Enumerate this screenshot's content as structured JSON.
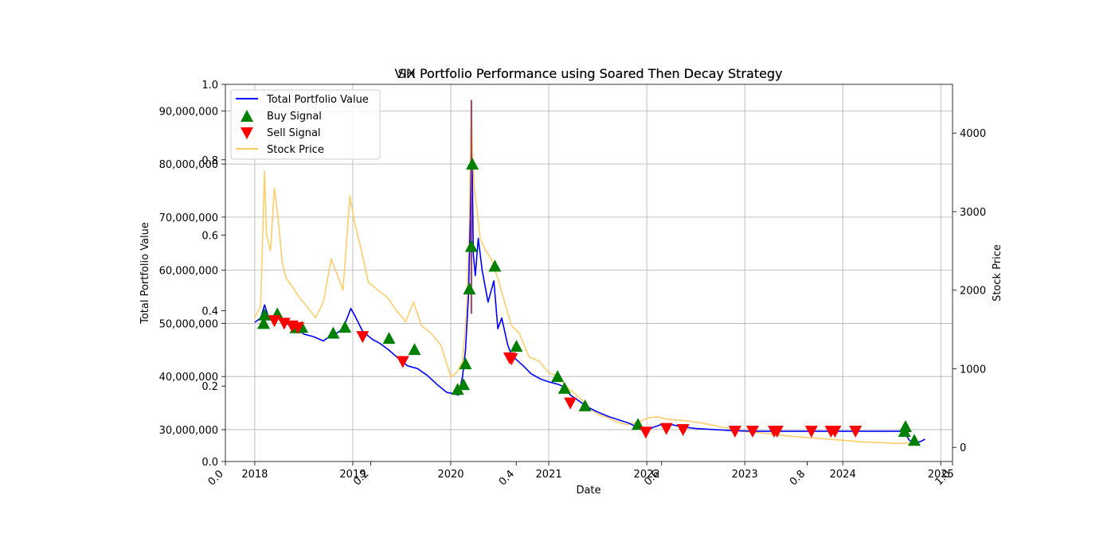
{
  "chart_data": {
    "type": "line",
    "title": "VIX Portfolio Performance using Soared Then Decay Strategy",
    "title_overlay": "SH Portfolio Performance using Soared Then Decay Strategy",
    "xlabel": "Date",
    "ylabel_left": "Total Portfolio Value",
    "ylabel_right": "Stock Price",
    "grid": true,
    "legend_position": "top-left",
    "x_range": [
      2017.7,
      2025.12
    ],
    "x_ticks": [
      "2018",
      "2019",
      "2020",
      "2021",
      "2022",
      "2023",
      "2024",
      "2025"
    ],
    "y_left_range": [
      24000000,
      95000000
    ],
    "y_left_ticks": [
      "30,000,000",
      "40,000,000",
      "50,000,000",
      "60,000,000",
      "70,000,000",
      "80,000,000",
      "90,000,000"
    ],
    "y_right_range": [
      -180,
      4620
    ],
    "y_right_ticks": [
      "0",
      "1000",
      "2000",
      "3000",
      "4000"
    ],
    "overlay_axis_ticks": [
      "0.0",
      "0.2",
      "0.4",
      "0.6",
      "0.8",
      "1.0"
    ],
    "legend": [
      "Total Portfolio Value",
      "Buy Signal",
      "Sell Signal",
      "Stock Price"
    ],
    "colors": {
      "portfolio": "#0000ff",
      "buy": "#008000",
      "sell": "#ff0000",
      "stock": "#ffc85a",
      "spike": "#993f6a"
    },
    "series": [
      {
        "name": "Total Portfolio Value",
        "axis": "left",
        "x": [
          2018.0,
          2018.06,
          2018.1,
          2018.14,
          2018.2,
          2018.26,
          2018.3,
          2018.36,
          2018.42,
          2018.5,
          2018.6,
          2018.7,
          2018.76,
          2018.84,
          2018.9,
          2018.98,
          2019.02,
          2019.1,
          2019.2,
          2019.28,
          2019.36,
          2019.46,
          2019.56,
          2019.66,
          2019.76,
          2019.86,
          2019.96,
          2020.02,
          2020.08,
          2020.12,
          2020.15,
          2020.18,
          2020.2,
          2020.21,
          2020.22,
          2020.23,
          2020.25,
          2020.28,
          2020.32,
          2020.38,
          2020.44,
          2020.48,
          2020.52,
          2020.58,
          2020.62,
          2020.68,
          2020.74,
          2020.82,
          2020.92,
          2021.0,
          2021.1,
          2021.16,
          2021.22,
          2021.3,
          2021.4,
          2021.5,
          2021.62,
          2021.72,
          2021.82,
          2021.9,
          2021.98,
          2022.06,
          2022.14,
          2022.24,
          2022.34,
          2022.5,
          2022.7,
          2022.9,
          2023.1,
          2023.3,
          2023.5,
          2023.7,
          2023.9,
          2024.1,
          2024.3,
          2024.5,
          2024.62,
          2024.68,
          2024.72,
          2024.76,
          2024.8,
          2024.84
        ],
        "values": [
          50200000,
          51000000,
          53500000,
          51200000,
          50100000,
          51500000,
          50200000,
          49600000,
          49300000,
          48000000,
          47500000,
          46700000,
          47500000,
          48200000,
          49000000,
          52800000,
          51500000,
          48500000,
          47000000,
          46200000,
          45100000,
          43500000,
          42000000,
          41500000,
          40200000,
          38500000,
          37000000,
          36800000,
          36500000,
          40000000,
          45000000,
          55000000,
          70000000,
          82000000,
          78000000,
          63000000,
          59000000,
          66000000,
          60000000,
          54000000,
          58000000,
          49000000,
          51000000,
          46000000,
          44000000,
          43000000,
          42000000,
          40500000,
          39500000,
          39000000,
          38500000,
          38000000,
          36500000,
          35500000,
          34200000,
          33300000,
          32400000,
          31800000,
          31200000,
          30500000,
          29600000,
          30400000,
          30900000,
          31000000,
          30600000,
          30200000,
          30000000,
          29800000,
          29700000,
          29700000,
          29700000,
          29700000,
          29700000,
          29700000,
          29700000,
          29700000,
          29700000,
          28000000,
          27500000,
          27600000,
          27800000,
          28200000
        ]
      },
      {
        "name": "Stock Price",
        "axis": "right",
        "x": [
          2018.0,
          2018.06,
          2018.1,
          2018.12,
          2018.16,
          2018.2,
          2018.24,
          2018.28,
          2018.32,
          2018.38,
          2018.46,
          2018.54,
          2018.62,
          2018.7,
          2018.78,
          2018.84,
          2018.9,
          2018.97,
          2019.02,
          2019.08,
          2019.16,
          2019.26,
          2019.36,
          2019.44,
          2019.54,
          2019.62,
          2019.7,
          2019.8,
          2019.9,
          2020.0,
          2020.06,
          2020.12,
          2020.16,
          2020.19,
          2020.21,
          2020.22,
          2020.24,
          2020.27,
          2020.3,
          2020.36,
          2020.42,
          2020.48,
          2020.56,
          2020.62,
          2020.7,
          2020.8,
          2020.9,
          2021.0,
          2021.1,
          2021.2,
          2021.3,
          2021.4,
          2021.5,
          2021.6,
          2021.7,
          2021.8,
          2021.9,
          2022.0,
          2022.1,
          2022.2,
          2022.3,
          2022.45,
          2022.6,
          2022.8,
          2023.0,
          2023.2,
          2023.4,
          2023.6,
          2023.8,
          2024.0,
          2024.2,
          2024.4,
          2024.6,
          2024.7,
          2024.78,
          2024.84
        ],
        "values": [
          1650,
          1800,
          3520,
          2700,
          2500,
          3300,
          2900,
          2350,
          2150,
          2050,
          1900,
          1780,
          1650,
          1850,
          2400,
          2200,
          2000,
          3200,
          2850,
          2550,
          2100,
          2000,
          1900,
          1750,
          1600,
          1850,
          1550,
          1450,
          1300,
          900,
          950,
          1100,
          1700,
          2800,
          4420,
          3800,
          3300,
          3000,
          2650,
          2500,
          2380,
          2150,
          1800,
          1550,
          1450,
          1150,
          1100,
          950,
          900,
          750,
          650,
          520,
          420,
          380,
          320,
          290,
          310,
          370,
          390,
          360,
          350,
          330,
          300,
          250,
          200,
          180,
          150,
          130,
          110,
          90,
          70,
          60,
          50,
          55,
          70,
          110
        ]
      }
    ],
    "buy_signals": {
      "name": "Buy Signal",
      "x": [
        2018.09,
        2018.1,
        2018.23,
        2018.42,
        2018.48,
        2018.8,
        2018.92,
        2019.37,
        2019.63,
        2020.07,
        2020.13,
        2020.15,
        2020.19,
        2020.21,
        2020.22,
        2020.45,
        2020.67,
        2021.09,
        2021.16,
        2021.37,
        2021.91,
        2024.63,
        2024.64,
        2024.73
      ],
      "values": [
        50000000,
        51600000,
        51800000,
        49200000,
        49300000,
        48200000,
        49300000,
        47200000,
        45100000,
        37600000,
        38500000,
        42400000,
        56500000,
        64500000,
        80000000,
        60800000,
        45700000,
        40000000,
        37800000,
        34500000,
        31000000,
        29700000,
        30600000,
        28000000
      ]
    },
    "sell_signals": {
      "name": "Sell Signal",
      "x": [
        2018.2,
        2018.3,
        2018.38,
        2018.44,
        2019.1,
        2019.51,
        2020.6,
        2020.62,
        2021.22,
        2021.99,
        2022.2,
        2022.37,
        2022.9,
        2023.08,
        2023.3,
        2023.33,
        2023.68,
        2023.88,
        2023.92,
        2024.13
      ],
      "values": [
        50500000,
        50000000,
        49500000,
        49200000,
        47500000,
        42800000,
        43500000,
        43300000,
        35000000,
        29500000,
        30200000,
        30000000,
        29700000,
        29700000,
        29700000,
        29700000,
        29700000,
        29700000,
        29700000,
        29700000
      ]
    }
  }
}
